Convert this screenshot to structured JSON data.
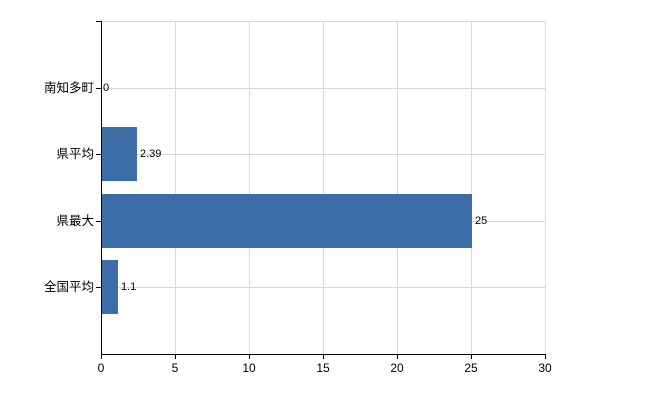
{
  "chart_data": {
    "type": "bar",
    "orientation": "horizontal",
    "title": "",
    "categories": [
      "南知多町",
      "県平均",
      "県最大",
      "全国平均"
    ],
    "values": [
      0,
      2.39,
      25,
      1.1
    ],
    "value_labels": [
      "0",
      "2.39",
      "25",
      "1.1"
    ],
    "x_ticks": [
      0,
      5,
      10,
      15,
      20,
      25,
      30
    ],
    "x_tick_labels": [
      "0",
      "5",
      "10",
      "15",
      "20",
      "25",
      "30"
    ],
    "xlim": [
      0,
      30
    ],
    "grid": true,
    "legend": false,
    "colors": {
      "bar": "#3c6da7",
      "grid": "#d9d9d9",
      "axis": "#000000",
      "background": "#ffffff",
      "text": "#000000"
    }
  }
}
